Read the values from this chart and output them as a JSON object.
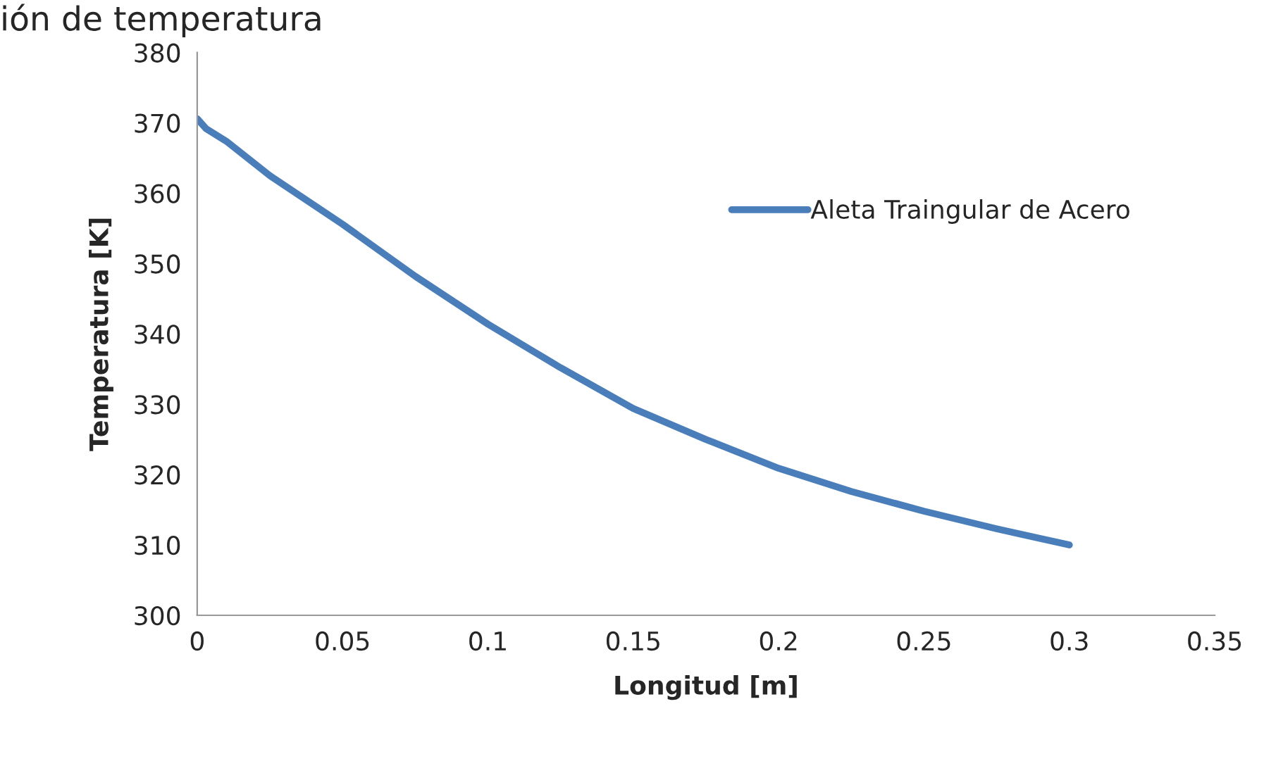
{
  "chart_data": {
    "type": "line",
    "title": "ión de temperatura",
    "xlabel": "Longitud [m]",
    "ylabel": "Temperatura [K]",
    "series": [
      {
        "name": "Aleta Traingular de Acero",
        "color": "#4a7ebb",
        "x": [
          0,
          0.003,
          0.01,
          0.025,
          0.05,
          0.075,
          0.1,
          0.125,
          0.15,
          0.175,
          0.2,
          0.225,
          0.25,
          0.275,
          0.3
        ],
        "values": [
          370.6,
          369.2,
          367.4,
          362.5,
          355.6,
          348.2,
          341.4,
          335.2,
          329.4,
          325.0,
          320.9,
          317.6,
          314.8,
          312.3,
          310.0
        ]
      }
    ],
    "xlim": [
      0,
      0.35
    ],
    "xticks": [
      0,
      {
        "value": 0.05,
        "label": "0.05"
      },
      {
        "value": 0.1,
        "label": "0.1"
      },
      {
        "value": 0.15,
        "label": "0.15"
      },
      {
        "value": 0.2,
        "label": "0.2"
      },
      {
        "value": 0.25,
        "label": "0.25"
      },
      {
        "value": 0.3,
        "label": "0.3"
      },
      {
        "value": 0.35,
        "label": "0.35"
      }
    ],
    "ylim": [
      300,
      380
    ],
    "yticks": [
      300,
      310,
      320,
      330,
      340,
      350,
      360,
      370,
      380
    ],
    "legend": "top right",
    "grid": false
  }
}
